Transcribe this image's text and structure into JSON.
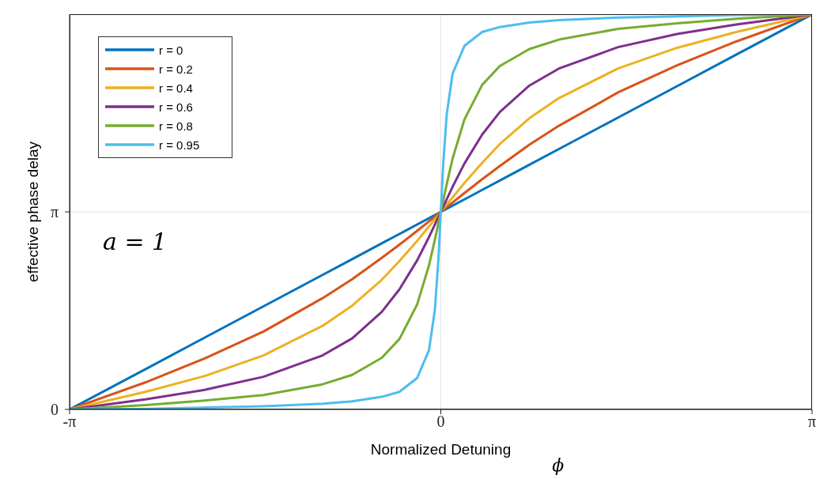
{
  "chart_data": {
    "type": "line",
    "xlabel": "Normalized Detuning",
    "ylabel": "effective phase delay",
    "annotations": [
      "a = 1",
      "ϕ"
    ],
    "x": [
      -3.1416,
      -2.5,
      -2,
      -1.5,
      -1,
      -0.75,
      -0.5,
      -0.35,
      -0.2,
      -0.1,
      -0.05,
      -0.02,
      0,
      0.02,
      0.05,
      0.1,
      0.2,
      0.35,
      0.5,
      0.75,
      1,
      1.5,
      2,
      2.5,
      3.1416
    ],
    "series": [
      {
        "name": "r = 0",
        "color": "#0072bd",
        "values": [
          0,
          0.64,
          1.14,
          1.64,
          2.14,
          2.39,
          2.64,
          2.79,
          2.94,
          3.04,
          3.09,
          3.12,
          3.14,
          3.16,
          3.19,
          3.24,
          3.34,
          3.49,
          3.64,
          3.89,
          4.14,
          4.64,
          5.14,
          5.64,
          6.28
        ]
      },
      {
        "name": "r = 0.2",
        "color": "#d95319",
        "values": [
          0,
          0.43,
          0.81,
          1.24,
          1.77,
          2.07,
          2.41,
          2.62,
          2.84,
          2.99,
          3.06,
          3.11,
          3.14,
          3.17,
          3.22,
          3.29,
          3.44,
          3.66,
          3.87,
          4.21,
          4.51,
          5.04,
          5.47,
          5.85,
          6.28
        ]
      },
      {
        "name": "r = 0.4",
        "color": "#edb120",
        "values": [
          0,
          0.28,
          0.53,
          0.86,
          1.33,
          1.65,
          2.06,
          2.36,
          2.68,
          2.91,
          3.02,
          3.09,
          3.14,
          3.19,
          3.26,
          3.37,
          3.6,
          3.92,
          4.22,
          4.63,
          4.95,
          5.42,
          5.75,
          6,
          6.28
        ]
      },
      {
        "name": "r = 0.6",
        "color": "#7e2f8e",
        "values": [
          0,
          0.16,
          0.31,
          0.52,
          0.86,
          1.13,
          1.55,
          1.91,
          2.37,
          2.74,
          2.94,
          3.06,
          3.14,
          3.22,
          3.34,
          3.54,
          3.91,
          4.37,
          4.73,
          5.15,
          5.42,
          5.76,
          5.97,
          6.12,
          6.28
        ]
      },
      {
        "name": "r = 0.8",
        "color": "#77ac30",
        "values": [
          0,
          0.07,
          0.14,
          0.23,
          0.4,
          0.55,
          0.82,
          1.12,
          1.67,
          2.29,
          2.7,
          2.96,
          3.14,
          3.32,
          3.58,
          3.99,
          4.61,
          5.16,
          5.46,
          5.73,
          5.88,
          6.05,
          6.14,
          6.21,
          6.28
        ]
      },
      {
        "name": "r = 0.95",
        "color": "#4dbeee",
        "values": [
          0,
          0.01,
          0.03,
          0.05,
          0.09,
          0.13,
          0.2,
          0.28,
          0.5,
          0.94,
          1.59,
          2.39,
          3.14,
          3.89,
          4.69,
          5.34,
          5.78,
          6,
          6.08,
          6.15,
          6.19,
          6.23,
          6.25,
          6.27,
          6.28
        ]
      }
    ],
    "xlim": [
      -3.1416,
      3.1416
    ],
    "xticks": [
      {
        "value": -3.1416,
        "label": "-π"
      },
      0,
      {
        "value": 3.1416,
        "label": "π"
      }
    ],
    "ylim": [
      0,
      6.2832
    ],
    "yticks": [
      0,
      {
        "value": 3.1416,
        "label": "π"
      }
    ],
    "grid": true,
    "legend": "top left",
    "marker": "none",
    "line_style": "solid"
  }
}
